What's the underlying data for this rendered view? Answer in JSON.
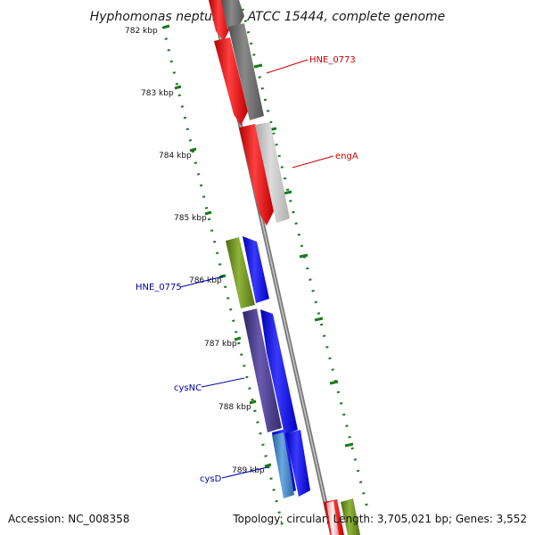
{
  "title": "Hyphomonas neptunium ATCC 15444, complete genome",
  "footer": {
    "accession": "Accession: NC_008358",
    "summary": "Topology: circular; Length: 3,705,021 bp; Genes: 3,552"
  },
  "colors": {
    "backbone": "#888888",
    "tick": "#1a7a1a",
    "label_forward": "#cc0000",
    "label_reverse": "#0000aa"
  },
  "ticks": [
    "782 kbp",
    "783 kbp",
    "784 kbp",
    "785 kbp",
    "786 kbp",
    "787 kbp",
    "788 kbp",
    "789 kbp"
  ],
  "genes": [
    {
      "label": "HNE_0773",
      "strand": "forward",
      "color": "#e00000"
    },
    {
      "label": "engA",
      "strand": "forward",
      "color": "#e00000"
    },
    {
      "label": "HNE_0775",
      "strand": "reverse",
      "color": "#6a8c1e"
    },
    {
      "label": "cysNC",
      "strand": "reverse",
      "color": "#3d2f7a"
    },
    {
      "label": "cysD",
      "strand": "reverse",
      "color": "#3a78b8"
    }
  ]
}
